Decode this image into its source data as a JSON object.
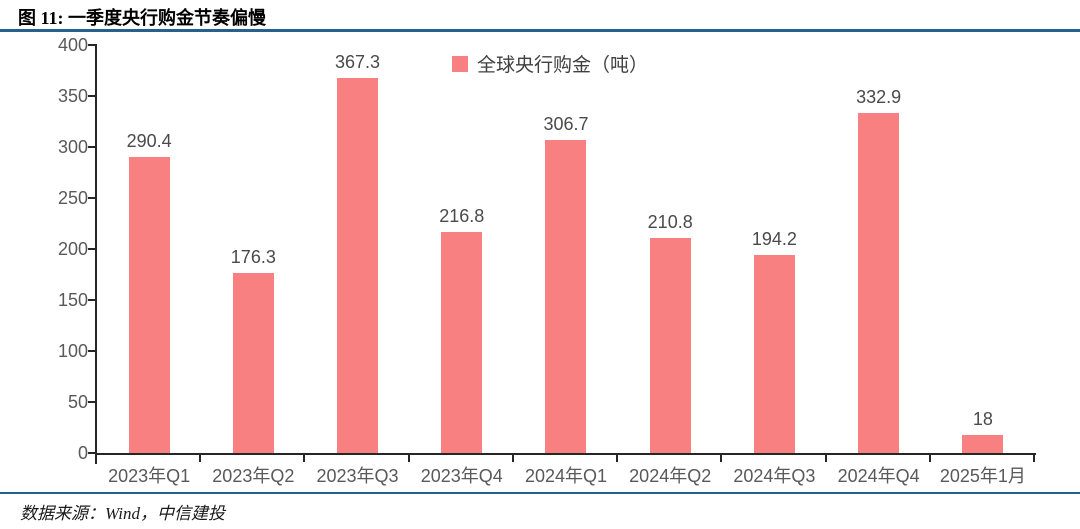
{
  "figure": {
    "title": "图 11:  一季度央行购金节奏偏慢",
    "source_note": "数据来源：Wind，中信建投"
  },
  "colors": {
    "bar": "#F98080",
    "rule_blue": "#24618E",
    "axis": "#262626",
    "tick_label": "#595959",
    "value_label": "#4A4A4A",
    "legend_label": "#404040"
  },
  "chart_data": {
    "type": "bar",
    "title": "图 11:  一季度央行购金节奏偏慢",
    "legend": [
      "全球央行购金（吨）"
    ],
    "legend_position": "top-center-right",
    "categories": [
      "2023年Q1",
      "2023年Q2",
      "2023年Q3",
      "2023年Q4",
      "2024年Q1",
      "2024年Q2",
      "2024年Q3",
      "2024年Q4",
      "2025年1月"
    ],
    "values": [
      290.4,
      176.3,
      367.3,
      216.8,
      306.7,
      210.8,
      194.2,
      332.9,
      18
    ],
    "value_labels": [
      "290.4",
      "176.3",
      "367.3",
      "216.8",
      "306.7",
      "210.8",
      "194.2",
      "332.9",
      "18"
    ],
    "xlabel": "",
    "ylabel": "",
    "ylim": [
      0,
      400
    ],
    "y_ticks": [
      0,
      50,
      100,
      150,
      200,
      250,
      300,
      350,
      400
    ],
    "grid": false,
    "bar_color": "#F98080"
  }
}
